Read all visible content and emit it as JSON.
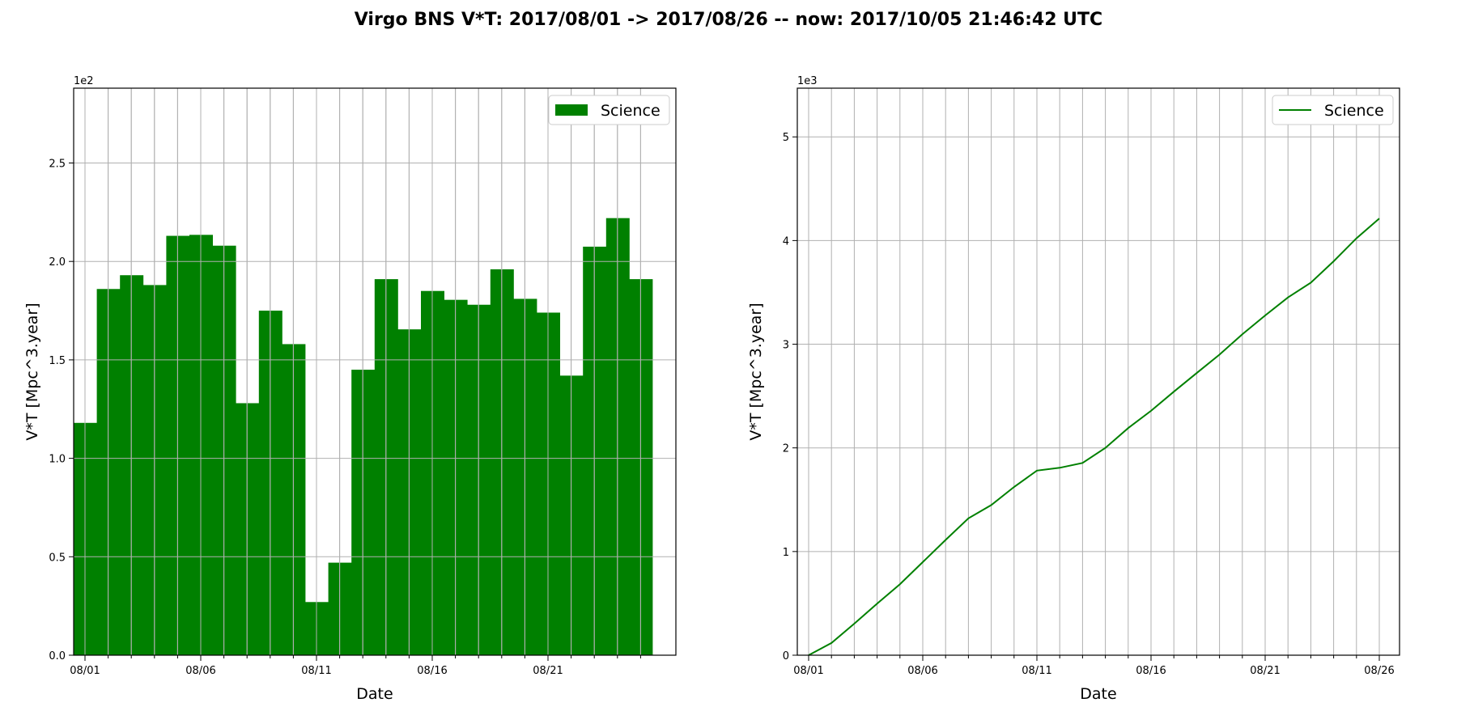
{
  "figure": {
    "title": "Virgo BNS V*T: 2017/08/01 -> 2017/08/26 -- now: 2017/10/05 21:46:42 UTC"
  },
  "colors": {
    "series": "#008000",
    "grid": "#b0b0b0",
    "axes": "#000000",
    "legend_border": "#cccccc"
  },
  "chart_data": [
    {
      "type": "bar",
      "xlabel": "Date",
      "ylabel": "V*T [Mpc^3.year]",
      "y_offset_label": "1e2",
      "x_ticks": [
        "08/01",
        "08/06",
        "08/11",
        "08/16",
        "08/21"
      ],
      "y_ticks": [
        "0.0",
        "0.5",
        "1.0",
        "1.5",
        "2.0",
        "2.5"
      ],
      "ylim": [
        0,
        288
      ],
      "grid": true,
      "legend_position": "top-right",
      "series": [
        {
          "name": "Science",
          "categories": [
            "08/01",
            "08/02",
            "08/03",
            "08/04",
            "08/05",
            "08/06",
            "08/07",
            "08/08",
            "08/09",
            "08/10",
            "08/11",
            "08/12",
            "08/13",
            "08/14",
            "08/15",
            "08/16",
            "08/17",
            "08/18",
            "08/19",
            "08/20",
            "08/21",
            "08/22",
            "08/23",
            "08/24",
            "08/25"
          ],
          "values": [
            118,
            186,
            193,
            188,
            213,
            213.5,
            208,
            128,
            175,
            158,
            27,
            47,
            145,
            191,
            165.5,
            185,
            180.5,
            178,
            196,
            181,
            174,
            142,
            207.5,
            222,
            191
          ]
        }
      ]
    },
    {
      "type": "line",
      "xlabel": "Date",
      "ylabel": "V*T [Mpc^3.year]",
      "y_offset_label": "1e3",
      "x_ticks": [
        "08/01",
        "08/06",
        "08/11",
        "08/16",
        "08/21",
        "08/26"
      ],
      "y_ticks": [
        "0",
        "1",
        "2",
        "3",
        "4",
        "5"
      ],
      "ylim": [
        0,
        5470
      ],
      "grid": true,
      "legend_position": "top-right",
      "series": [
        {
          "name": "Science",
          "x": [
            "08/01",
            "08/02",
            "08/03",
            "08/04",
            "08/05",
            "08/06",
            "08/07",
            "08/08",
            "08/09",
            "08/10",
            "08/11",
            "08/12",
            "08/13",
            "08/14",
            "08/15",
            "08/16",
            "08/17",
            "08/18",
            "08/19",
            "08/20",
            "08/21",
            "08/22",
            "08/23",
            "08/24",
            "08/25",
            "08/26"
          ],
          "values": [
            0,
            118,
            304,
            497,
            685,
            898,
            1112,
            1320,
            1448,
            1623,
            1781,
            1808,
            1855,
            2000,
            2191,
            2357,
            2542,
            2722,
            2900,
            3096,
            3277,
            3451,
            3593,
            3800,
            4022,
            4213
          ]
        }
      ]
    }
  ]
}
